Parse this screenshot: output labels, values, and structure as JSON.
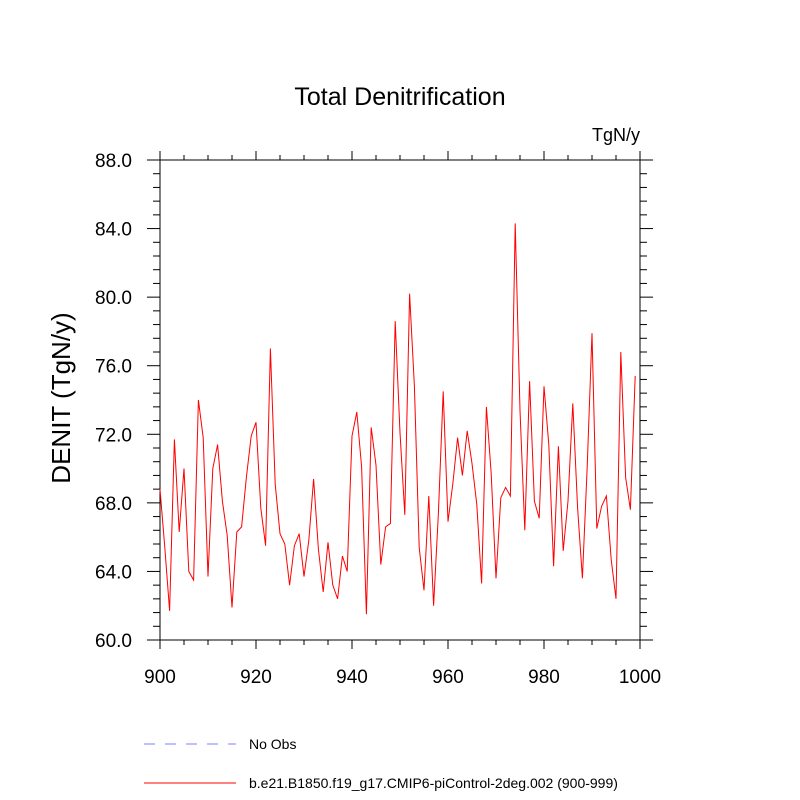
{
  "chart_data": {
    "type": "line",
    "title": "Total Denitrification",
    "units_label": "TgN/y",
    "ylabel": "DENIT  (TgN/y)",
    "xlabel": "",
    "xlim": [
      900,
      1000
    ],
    "ylim": [
      60,
      88
    ],
    "x_ticks": [
      900,
      920,
      940,
      960,
      980,
      1000
    ],
    "x_tick_labels": [
      "900",
      "920",
      "940",
      "960",
      "980",
      "1000"
    ],
    "y_ticks": [
      60,
      64,
      68,
      72,
      76,
      80,
      84,
      88
    ],
    "y_tick_labels": [
      "60.0",
      "64.0",
      "68.0",
      "72.0",
      "76.0",
      "80.0",
      "84.0",
      "88.0"
    ],
    "grid": false,
    "legend_position": "bottom",
    "series": [
      {
        "name": "No Obs",
        "color": "#8080ff",
        "style": "dashed",
        "x": [],
        "values": []
      },
      {
        "name": "b.e21.B1850.f19_g17.CMIP6-piControl-2deg.002 (900-999)",
        "color": "#ff0000",
        "style": "solid",
        "x": [
          900,
          901,
          902,
          903,
          904,
          905,
          906,
          907,
          908,
          909,
          910,
          911,
          912,
          913,
          914,
          915,
          916,
          917,
          918,
          919,
          920,
          921,
          922,
          923,
          924,
          925,
          926,
          927,
          928,
          929,
          930,
          931,
          932,
          933,
          934,
          935,
          936,
          937,
          938,
          939,
          940,
          941,
          942,
          943,
          944,
          945,
          946,
          947,
          948,
          949,
          950,
          951,
          952,
          953,
          954,
          955,
          956,
          957,
          958,
          959,
          960,
          961,
          962,
          963,
          964,
          965,
          966,
          967,
          968,
          969,
          970,
          971,
          972,
          973,
          974,
          975,
          976,
          977,
          978,
          979,
          980,
          981,
          982,
          983,
          984,
          985,
          986,
          987,
          988,
          989,
          990,
          991,
          992,
          993,
          994,
          995,
          996,
          997,
          998,
          999
        ],
        "values": [
          68.8,
          65.4,
          61.7,
          71.7,
          66.3,
          70.0,
          64.0,
          63.5,
          74.0,
          71.8,
          63.7,
          70.0,
          71.4,
          68.1,
          66.1,
          61.9,
          66.3,
          66.6,
          69.5,
          71.9,
          72.7,
          67.7,
          65.5,
          77.0,
          69.1,
          66.2,
          65.6,
          63.2,
          65.5,
          66.2,
          63.7,
          65.8,
          69.4,
          65.3,
          62.8,
          65.7,
          63.2,
          62.4,
          64.9,
          64.0,
          71.9,
          73.3,
          70.1,
          61.5,
          72.4,
          70.2,
          64.4,
          66.6,
          66.8,
          78.6,
          72.1,
          67.3,
          80.2,
          74.8,
          65.4,
          62.9,
          68.4,
          62.0,
          67.4,
          74.5,
          66.9,
          69.1,
          71.8,
          69.6,
          72.2,
          70.3,
          67.9,
          63.3,
          73.6,
          69.7,
          63.6,
          68.3,
          68.9,
          68.4,
          84.3,
          73.4,
          66.4,
          75.1,
          68.1,
          67.1,
          74.8,
          71.4,
          64.3,
          71.3,
          65.2,
          68.1,
          73.8,
          67.7,
          63.6,
          70.1,
          77.9,
          66.5,
          67.8,
          68.4,
          64.7,
          62.4,
          76.8,
          69.5,
          67.6,
          75.4
        ]
      }
    ]
  }
}
